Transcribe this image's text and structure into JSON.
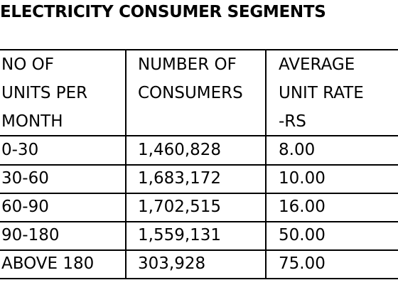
{
  "title": "ELECTRICITY CONSUMER SEGMENTS",
  "table": {
    "headers": [
      [
        "NO OF",
        "UNITS PER",
        "MONTH"
      ],
      [
        "NUMBER OF",
        "CONSUMERS"
      ],
      [
        "AVERAGE",
        "UNIT RATE",
        "-RS"
      ]
    ],
    "rows": [
      [
        "0-30",
        "1,460,828",
        "8.00"
      ],
      [
        "30-60",
        "1,683,172",
        "10.00"
      ],
      [
        "60-90",
        "1,702,515",
        "16.00"
      ],
      [
        "90-180",
        "1,559,131",
        "50.00"
      ],
      [
        "ABOVE 180",
        "303,928",
        "75.00"
      ]
    ]
  }
}
